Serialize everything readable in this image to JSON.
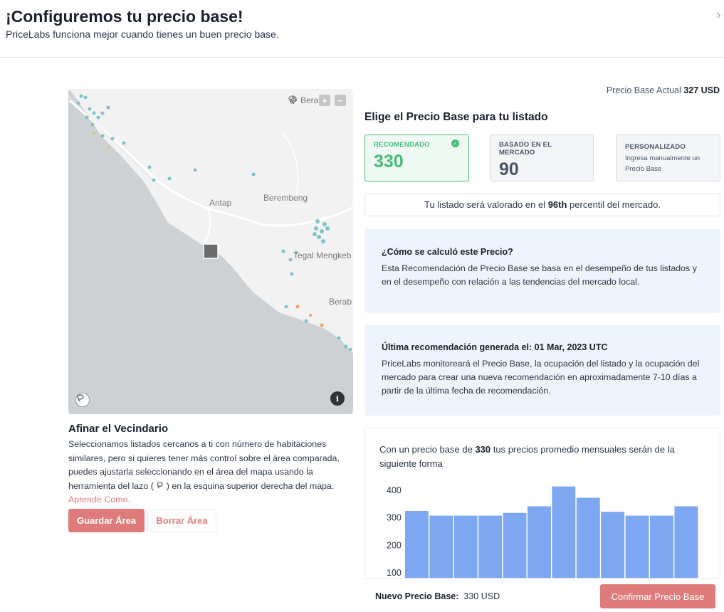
{
  "header": {
    "title": "¡Configuremos tu precio base!",
    "subtitle": "PriceLabs funciona mejor cuando tienes un buen precio base.",
    "close_icon": "chevron-right-icon"
  },
  "map": {
    "labels": {
      "antap": "Antap",
      "berembeng": "Berembeng",
      "tegal": "Tegal Mengkeb",
      "berab": "Berab",
      "bera_top": "Bera"
    },
    "toolbar_icons": [
      "move-icon",
      "lasso-icon",
      "zoom-in-icon",
      "zoom-out-icon"
    ],
    "zoom_in": "+",
    "zoom_out": "−",
    "info_glyph": "i",
    "colors": {
      "land": "#f2f2f2",
      "sea": "#cdd1d3",
      "listing_dot": "#7ec4c9",
      "listing_dot_alt": "#f0a263",
      "selected_marker": "#6b6b6b"
    }
  },
  "neighborhood": {
    "title": "Afinar el Vecindario",
    "description_1": "Seleccionamos listados cercanos a ti con número de habitaciones similares, pero si quieres tener más control sobre el área comparada, puedes ajustarla seleccionando en el área del mapa usando la herramienta del lazo (",
    "description_2": ") en la esquina superior derecha del mapa.",
    "learn_link": "Aprende Como.",
    "save_label": "Guardar Área",
    "clear_label": "Borrar Área"
  },
  "pricing": {
    "current_label": "Precio Base Actual",
    "current_value": "327 USD",
    "choose_title": "Elige el Precio Base para tu listado",
    "cards": {
      "recommended": {
        "label": "RECOMENDADO",
        "value": "330"
      },
      "market": {
        "label": "BASADO EN EL MERCADO",
        "value": "90"
      },
      "custom": {
        "label": "PERSONALIZADO",
        "sub": "Ingresa manualmente un Precio Base"
      }
    },
    "percentile_pre": "Tu listado será valorado en el ",
    "percentile_value": "96th",
    "percentile_post": " percentil del mercado.",
    "accent_color": "#48bb78"
  },
  "info": {
    "how_title": "¿Cómo se calculó este Precio?",
    "how_text": "Esta Recomendación de Precio Base se basa en el desempeño de tus listados y en el desempeño con relación a las tendencias del mercado local.",
    "last_title": "Última recomendación generada el: 01 Mar, 2023 UTC",
    "last_text": "PriceLabs monitoreará el Precio Base, la ocupación del listado y la ocupación del mercado para crear una nueva recomendación en aproximadamente 7-10 días a partir de la última fecha de recomendación."
  },
  "chart_caption": {
    "pre": "Con un precio base de ",
    "value": "330",
    "post": " tus precios promedio mensuales serán de la siguiente forma"
  },
  "chart_data": {
    "type": "bar",
    "y_ticks": [
      "400",
      "300",
      "200",
      "100"
    ],
    "ylim": [
      100,
      400
    ],
    "values": [
      325,
      308,
      308,
      308,
      318,
      342,
      414,
      373,
      322,
      308,
      308,
      342
    ],
    "grid": false,
    "bar_color": "#7ea7f2"
  },
  "footer": {
    "new_price_label": "Nuevo Precio Base:",
    "new_price_value": "330 USD",
    "confirm_label": "Confirmar Precio Base"
  }
}
